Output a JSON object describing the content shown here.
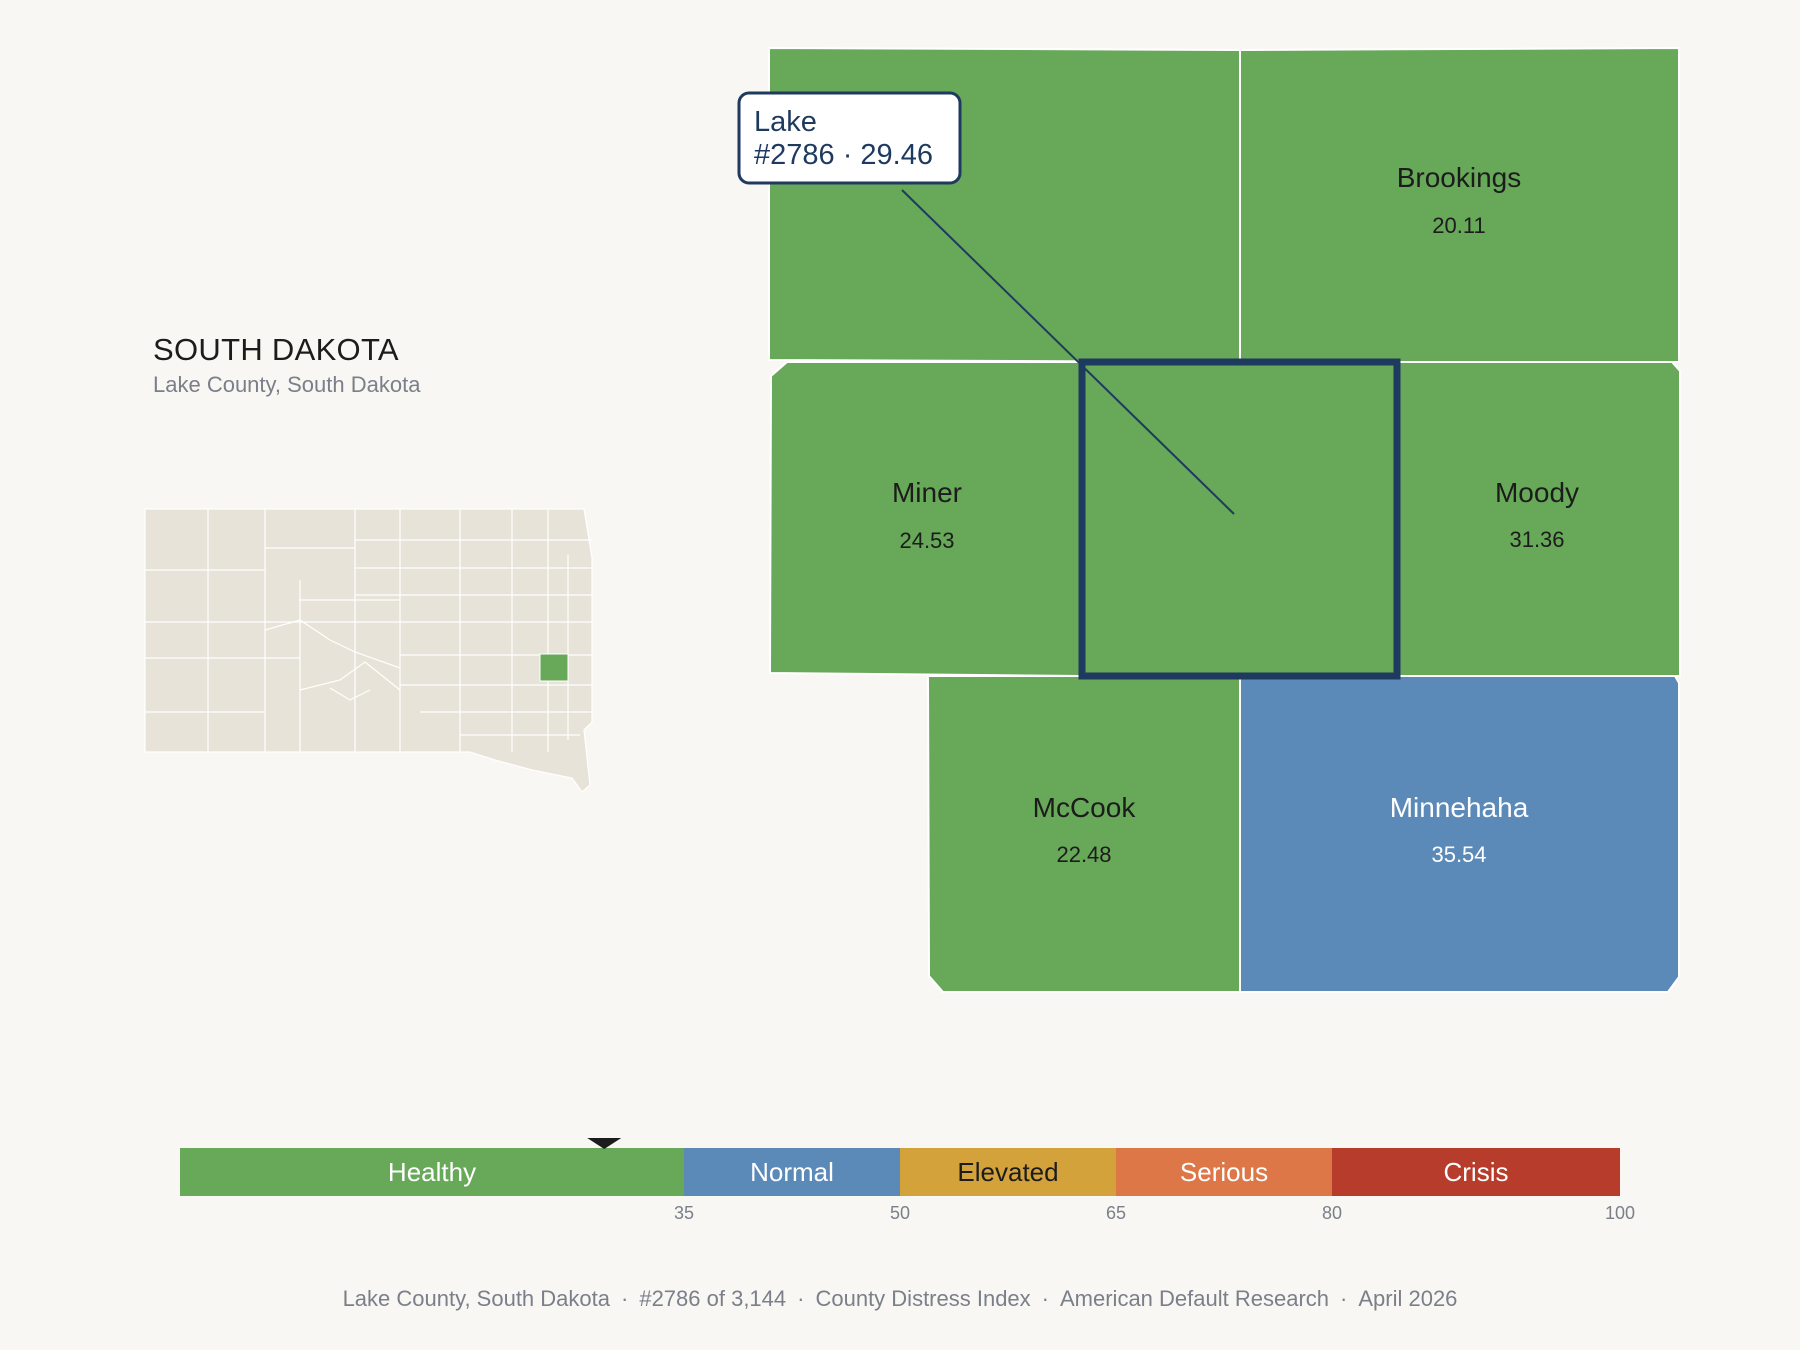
{
  "header": {
    "state_title": "SOUTH DAKOTA",
    "state_subtitle": "Lake County, South Dakota"
  },
  "focus_county": {
    "name": "Lake",
    "rank_label": "#2786 · 29.46",
    "value": 29.46,
    "color": "#67a859"
  },
  "neighbors": [
    {
      "name": "",
      "value": "",
      "color": "#67a859"
    },
    {
      "name": "Brookings",
      "value": "20.11",
      "color": "#67a859"
    },
    {
      "name": "Miner",
      "value": "24.53",
      "color": "#67a859"
    },
    {
      "name": "Moody",
      "value": "31.36",
      "color": "#67a859"
    },
    {
      "name": "McCook",
      "value": "22.48",
      "color": "#67a859"
    },
    {
      "name": "Minnehaha",
      "value": "35.54",
      "color": "#5b8ab9"
    }
  ],
  "scale": {
    "min": 0,
    "max": 100,
    "marker_value": 29.46,
    "bands": [
      {
        "label": "Healthy",
        "from": 0,
        "to": 35,
        "color": "#67a859"
      },
      {
        "label": "Normal",
        "from": 35,
        "to": 50,
        "color": "#5b8ab9"
      },
      {
        "label": "Elevated",
        "from": 50,
        "to": 65,
        "color": "#d4a23a"
      },
      {
        "label": "Serious",
        "from": 65,
        "to": 80,
        "color": "#dd7748"
      },
      {
        "label": "Crisis",
        "from": 80,
        "to": 100,
        "color": "#b83c2b"
      }
    ],
    "ticks": [
      "35",
      "50",
      "65",
      "80",
      "100"
    ]
  },
  "footer": {
    "location": "Lake County, South Dakota",
    "rank": "#2786 of 3,144",
    "index_name": "County Distress Index",
    "publisher": "American Default Research",
    "date": "April 2026"
  },
  "colors": {
    "background": "#f9f7f3",
    "inset_fill": "#e8e3d8",
    "outline": "#1f3a5f"
  }
}
